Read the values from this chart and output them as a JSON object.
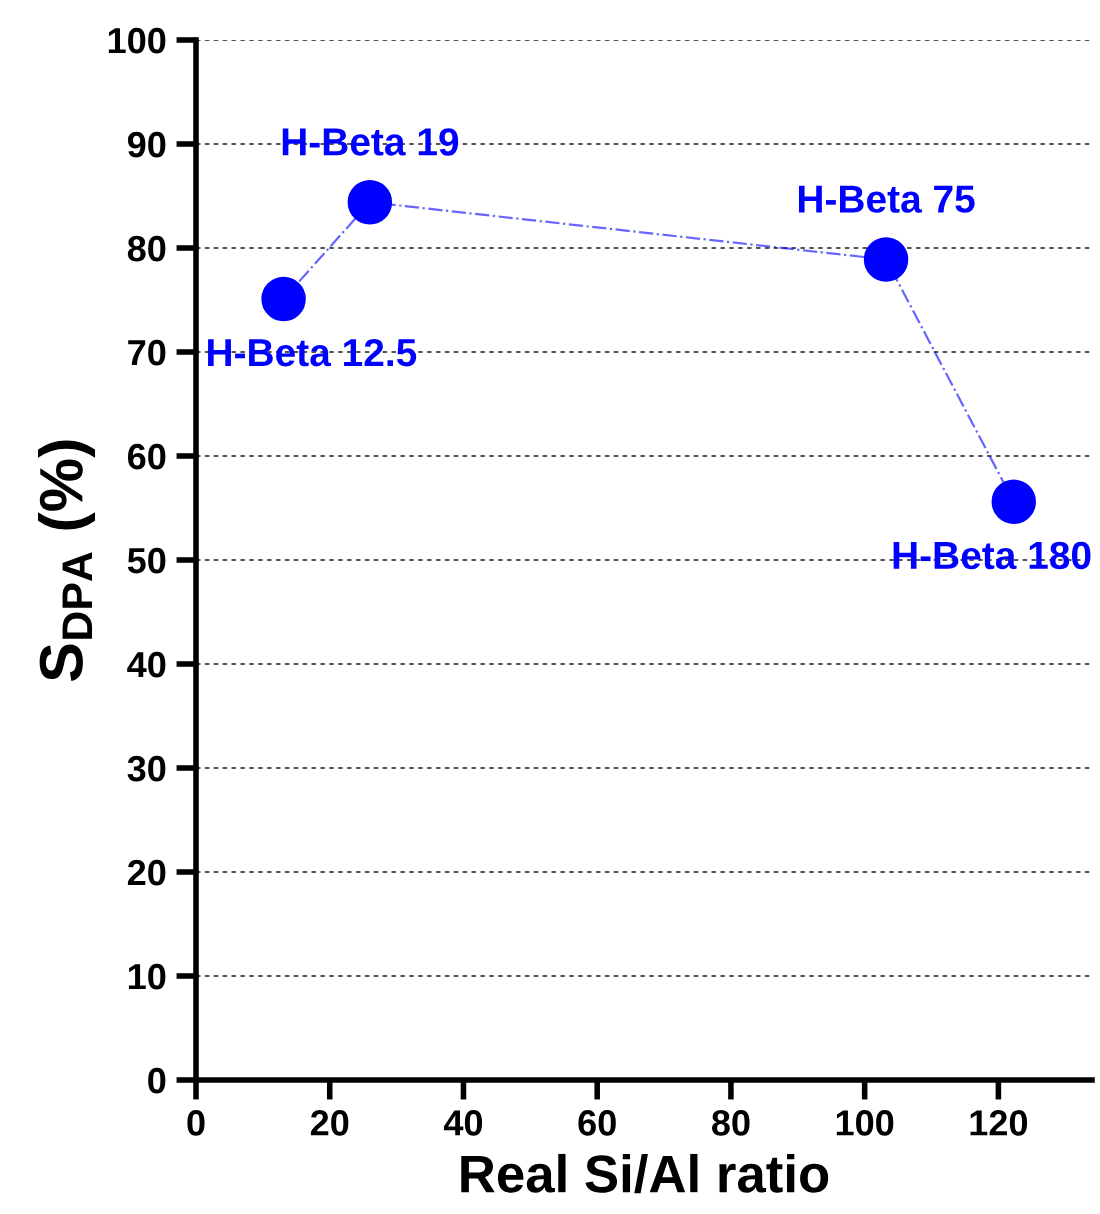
{
  "chart_data": {
    "type": "line",
    "xlabel": "Real Si/Al ratio",
    "ylabel": "S$_{DPA}$ (%)",
    "x": [
      13.1,
      26.0,
      103.2,
      122.3
    ],
    "series": [
      {
        "color": "#0000ff",
        "values": [
          75.1,
          84.4,
          78.9,
          55.6
        ]
      }
    ],
    "xlim": [
      0,
      134
    ],
    "xticks": [
      0,
      20,
      40,
      60,
      80,
      100,
      120
    ],
    "ylim": [
      0,
      100
    ],
    "yticks": [
      0,
      10,
      20,
      30,
      40,
      50,
      60,
      70,
      80,
      90,
      100
    ],
    "grid": "y",
    "marker": "circle",
    "line_style": "dotted",
    "annotations": [
      {
        "text": "H-Beta 12.5",
        "x": 13.1,
        "y": 75.1
      },
      {
        "text": "H-Beta 19",
        "x": 26.0,
        "y": 84.4
      },
      {
        "text": "H-Beta 75",
        "x": 103.2,
        "y": 78.9
      },
      {
        "text": "H-Beta 180",
        "x": 122.3,
        "y": 55.6
      }
    ]
  }
}
